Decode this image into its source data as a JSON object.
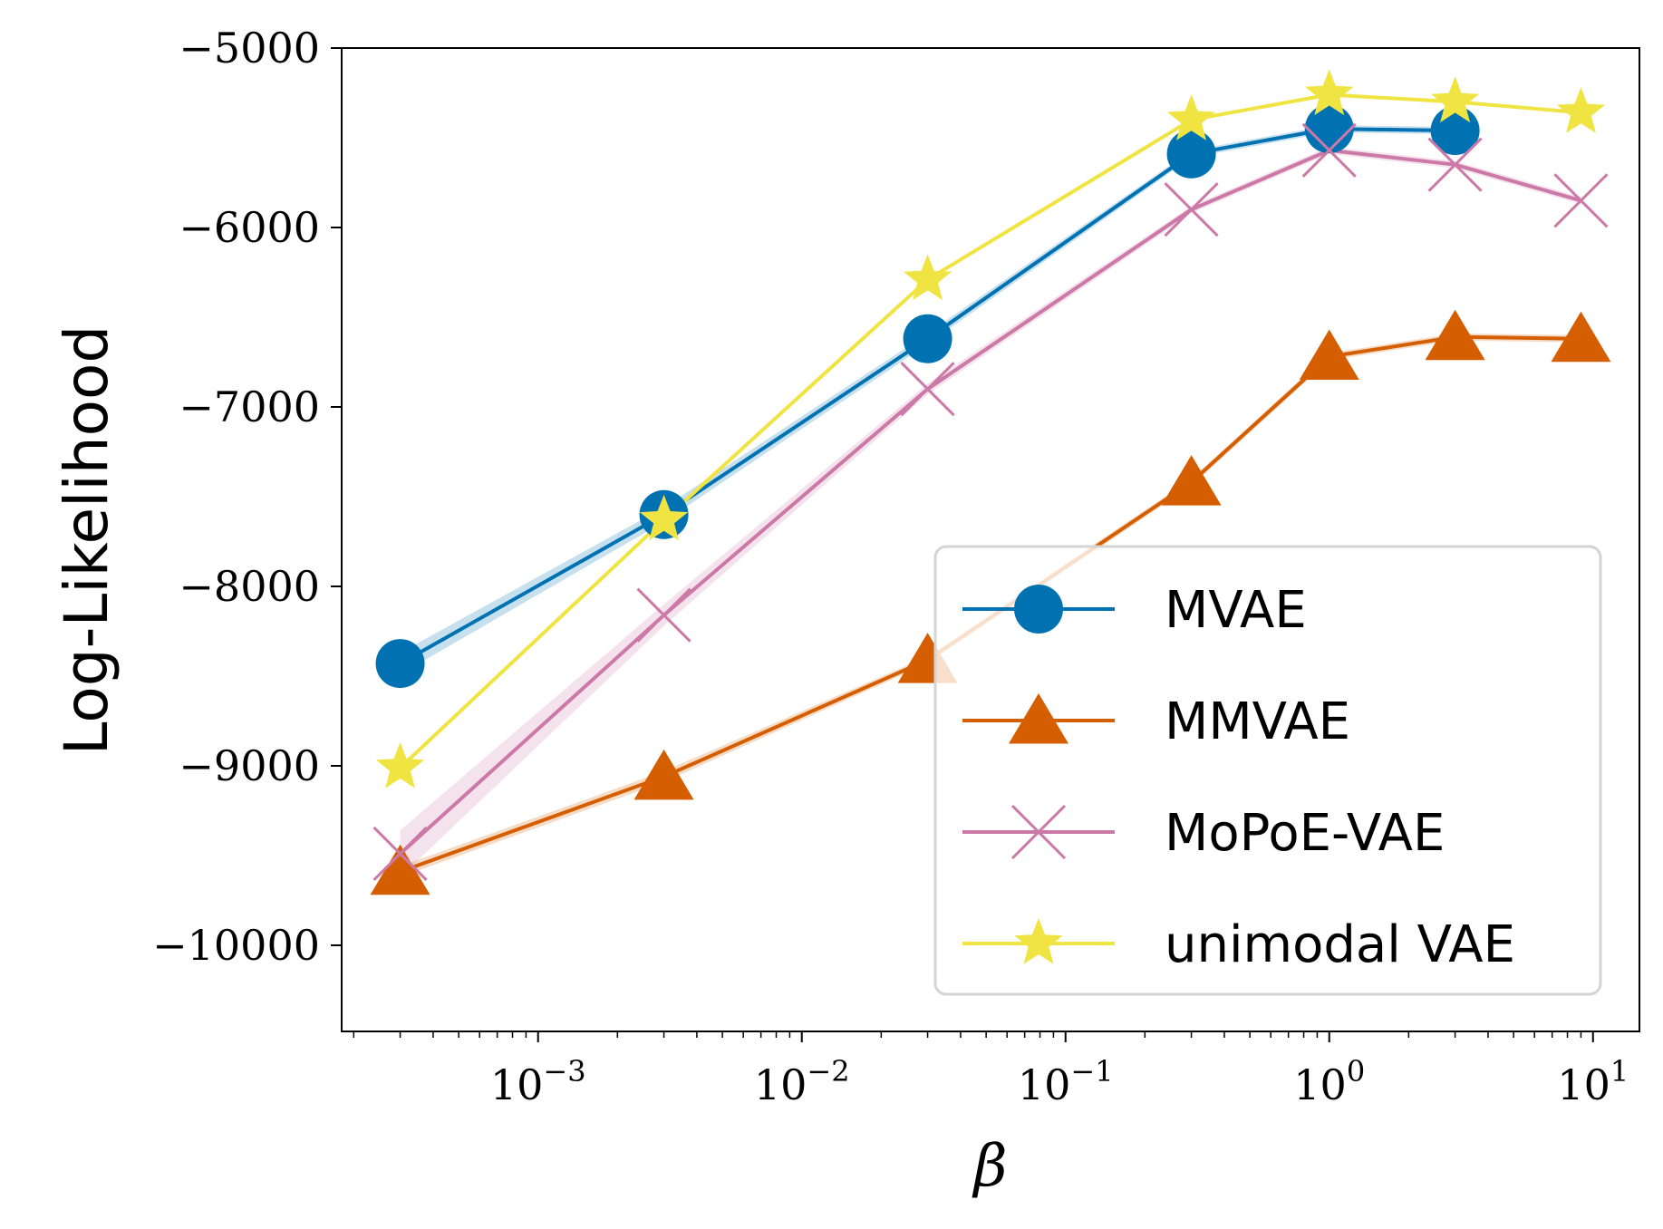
{
  "chart_data": {
    "type": "line",
    "title": "",
    "xlabel": "β",
    "ylabel": "Log-Likelihood",
    "xscale": "log",
    "xlim": [
      0.00018,
      15
    ],
    "ylim": [
      -10480,
      -5000
    ],
    "x": [
      0.0003,
      0.003,
      0.03,
      0.3,
      1,
      3,
      9
    ],
    "x_ticks": [
      {
        "value": 0.001,
        "base": "10",
        "exp": "−3"
      },
      {
        "value": 0.01,
        "base": "10",
        "exp": "−2"
      },
      {
        "value": 0.1,
        "base": "10",
        "exp": "−1"
      },
      {
        "value": 1,
        "base": "10",
        "exp": "0"
      },
      {
        "value": 10,
        "base": "10",
        "exp": "1"
      }
    ],
    "y_ticks": [
      {
        "value": -5000,
        "label": "−5000"
      },
      {
        "value": -6000,
        "label": "−6000"
      },
      {
        "value": -7000,
        "label": "−7000"
      },
      {
        "value": -8000,
        "label": "−8000"
      },
      {
        "value": -9000,
        "label": "−9000"
      },
      {
        "value": -10000,
        "label": "−10000"
      }
    ],
    "grid": false,
    "legend_position": "bottom-right",
    "series": [
      {
        "name": "MVAE",
        "color": "#0072B2",
        "marker": "circle",
        "values": [
          -8430,
          -7600,
          -6620,
          -5590,
          -5450,
          -5460,
          null
        ],
        "band": [
          60,
          40,
          30,
          20,
          20,
          20,
          null
        ]
      },
      {
        "name": "MMVAE",
        "color": "#D55E00",
        "marker": "triangle",
        "values": [
          -9590,
          -9060,
          -8410,
          -7420,
          -6720,
          -6610,
          -6620
        ],
        "band": [
          30,
          30,
          20,
          20,
          20,
          20,
          20
        ]
      },
      {
        "name": "MoPoE-VAE",
        "color": "#CC79A7",
        "marker": "x",
        "values": [
          -9490,
          -8160,
          -6900,
          -5900,
          -5570,
          -5650,
          -5850
        ],
        "band": [
          130,
          60,
          30,
          20,
          20,
          20,
          20
        ]
      },
      {
        "name": "unimodal VAE",
        "color": "#F0E442",
        "marker": "star",
        "values": [
          -9010,
          -7630,
          -6290,
          -5400,
          -5260,
          -5300,
          -5360
        ],
        "band": [
          0,
          0,
          0,
          0,
          0,
          0,
          0
        ]
      }
    ]
  }
}
